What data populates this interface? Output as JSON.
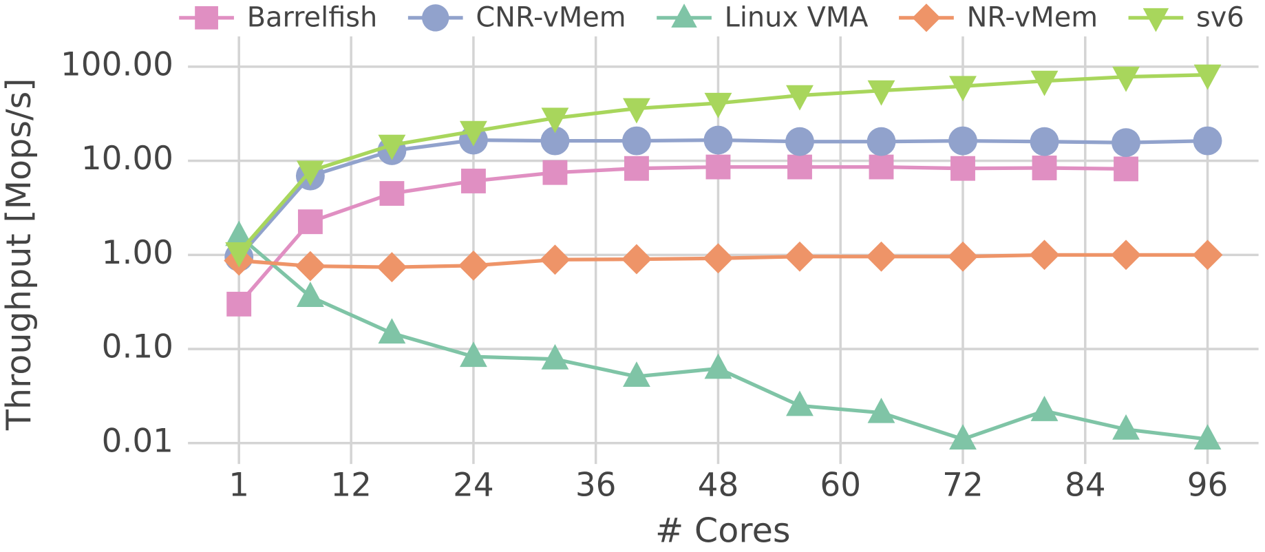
{
  "chart_data": {
    "type": "line",
    "xlabel": "# Cores",
    "ylabel": "Throughput [Mops/s]",
    "x": [
      1,
      8,
      16,
      24,
      32,
      40,
      48,
      56,
      64,
      72,
      80,
      88,
      96
    ],
    "xlim": [
      -4,
      101
    ],
    "xticks": [
      1,
      12,
      24,
      36,
      48,
      60,
      72,
      84,
      96
    ],
    "ylim": [
      0.006,
      210
    ],
    "yscale": "log",
    "yticks": [
      {
        "value": 0.01,
        "label": "0.01"
      },
      {
        "value": 0.1,
        "label": "0.10"
      },
      {
        "value": 1,
        "label": "1.00"
      },
      {
        "value": 10,
        "label": "10.00"
      },
      {
        "value": 100,
        "label": "100.00"
      }
    ],
    "grid": true,
    "legend": "top",
    "series": [
      {
        "name": "Barrelfish",
        "color": "#e08fc2",
        "marker": "square",
        "values": [
          0.3,
          2.25,
          4.5,
          6.1,
          7.5,
          8.3,
          8.6,
          8.6,
          8.6,
          8.3,
          8.4,
          8.2,
          null
        ]
      },
      {
        "name": "CNR-vMem",
        "color": "#91a2cc",
        "marker": "circle",
        "values": [
          0.95,
          6.9,
          12.8,
          16.6,
          16.3,
          16.3,
          16.6,
          16.0,
          16.0,
          16.3,
          16.0,
          15.6,
          16.3
        ]
      },
      {
        "name": "Linux VMA",
        "color": "#7fc4a6",
        "marker": "triangle-up",
        "values": [
          1.6,
          0.36,
          0.147,
          0.083,
          0.078,
          0.051,
          0.062,
          0.025,
          0.021,
          0.011,
          0.022,
          0.014,
          0.011
        ]
      },
      {
        "name": "NR-vMem",
        "color": "#ee9468",
        "marker": "diamond",
        "values": [
          0.87,
          0.76,
          0.74,
          0.77,
          0.89,
          0.9,
          0.92,
          0.96,
          0.96,
          0.96,
          1.0,
          1.0,
          1.0
        ]
      },
      {
        "name": "sv6",
        "color": "#a8d65c",
        "marker": "triangle-down",
        "values": [
          1.06,
          7.8,
          14.7,
          20.6,
          28.5,
          36,
          41,
          49.5,
          55.7,
          62,
          70.5,
          78,
          82
        ]
      }
    ]
  }
}
